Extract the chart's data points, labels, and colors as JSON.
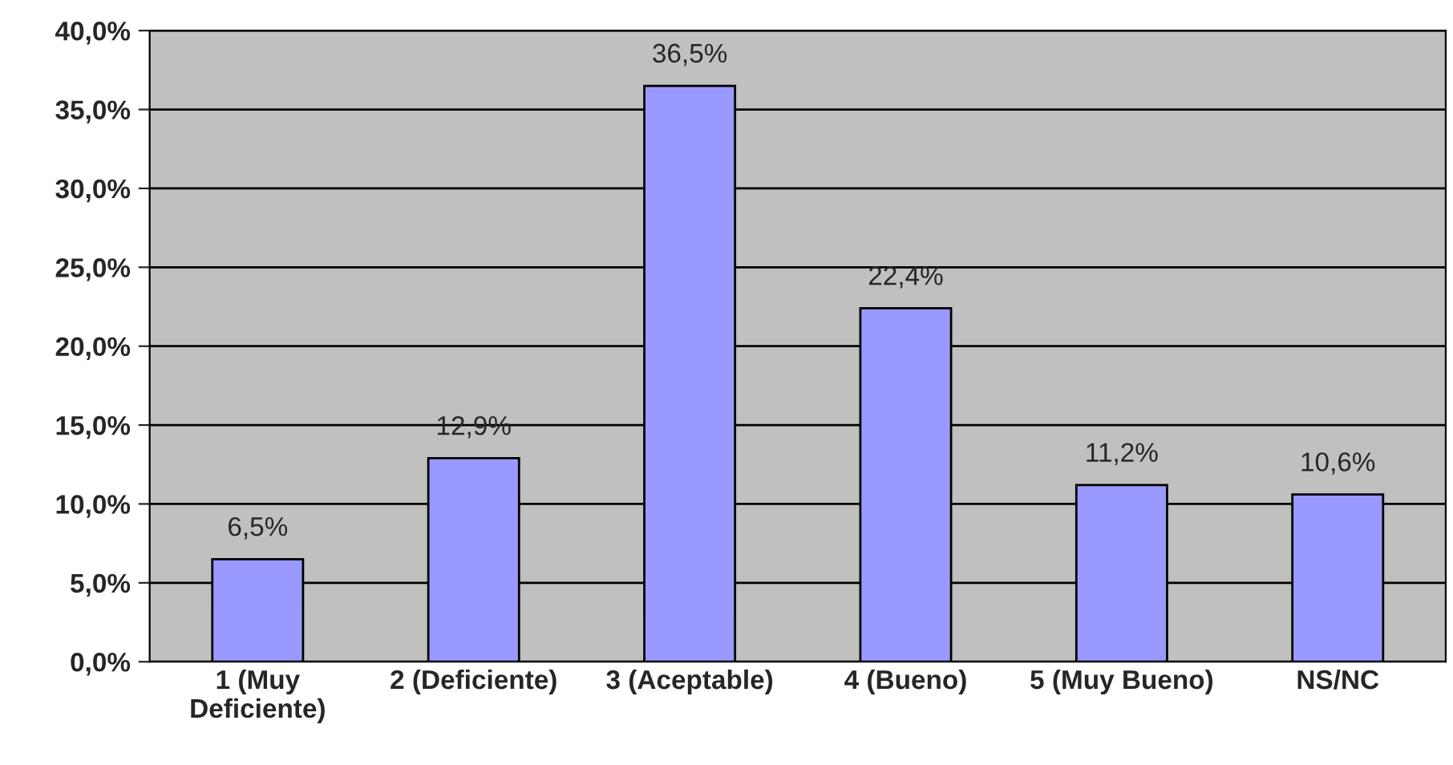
{
  "chart_data": {
    "type": "bar",
    "categories": [
      "1 (Muy\nDeficiente)",
      "2 (Deficiente)",
      "3 (Aceptable)",
      "4 (Bueno)",
      "5 (Muy Bueno)",
      "NS/NC"
    ],
    "values": [
      6.5,
      12.9,
      36.5,
      22.4,
      11.2,
      10.6
    ],
    "value_labels": [
      "6,5%",
      "12,9%",
      "36,5%",
      "22,4%",
      "11,2%",
      "10,6%"
    ],
    "color": "#9999ff",
    "ylim": [
      0,
      40
    ],
    "yticks": [
      {
        "value": 0,
        "label": "0,0%"
      },
      {
        "value": 5,
        "label": "5,0%"
      },
      {
        "value": 10,
        "label": "10,0%"
      },
      {
        "value": 15,
        "label": "15,0%"
      },
      {
        "value": 20,
        "label": "20,0%"
      },
      {
        "value": 25,
        "label": "25,0%"
      },
      {
        "value": 30,
        "label": "30,0%"
      },
      {
        "value": 35,
        "label": "35,0%"
      },
      {
        "value": 40,
        "label": "40,0%"
      }
    ],
    "grid": "y",
    "legend": false
  }
}
